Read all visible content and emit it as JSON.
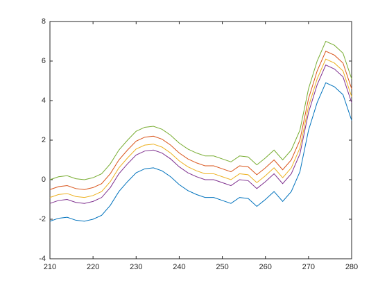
{
  "chart_data": {
    "type": "line",
    "x": [
      210,
      212,
      214,
      216,
      218,
      220,
      222,
      224,
      226,
      228,
      230,
      232,
      234,
      236,
      238,
      240,
      242,
      244,
      246,
      248,
      250,
      252,
      254,
      256,
      258,
      260,
      262,
      264,
      266,
      268,
      270,
      272,
      274,
      276,
      278,
      280
    ],
    "series": [
      {
        "color": "#0072bd",
        "values": [
          -2.1,
          -1.95,
          -1.9,
          -2.05,
          -2.1,
          -2.0,
          -1.8,
          -1.3,
          -0.6,
          -0.1,
          0.35,
          0.55,
          0.6,
          0.45,
          0.15,
          -0.25,
          -0.55,
          -0.75,
          -0.9,
          -0.9,
          -1.05,
          -1.2,
          -0.9,
          -0.95,
          -1.35,
          -1.0,
          -0.6,
          -1.1,
          -0.6,
          0.4,
          2.5,
          3.9,
          4.9,
          4.7,
          4.3,
          3.0
        ]
      },
      {
        "color": "#d95319",
        "values": [
          -0.5,
          -0.35,
          -0.3,
          -0.45,
          -0.5,
          -0.4,
          -0.2,
          0.3,
          1.0,
          1.5,
          1.95,
          2.15,
          2.2,
          2.05,
          1.75,
          1.35,
          1.05,
          0.85,
          0.7,
          0.7,
          0.55,
          0.4,
          0.7,
          0.65,
          0.25,
          0.6,
          1.0,
          0.5,
          1.0,
          2.0,
          4.1,
          5.5,
          6.5,
          6.3,
          5.9,
          4.6
        ]
      },
      {
        "color": "#edb120",
        "values": [
          -0.9,
          -0.75,
          -0.7,
          -0.85,
          -0.9,
          -0.8,
          -0.6,
          -0.1,
          0.6,
          1.1,
          1.55,
          1.75,
          1.8,
          1.65,
          1.35,
          0.95,
          0.65,
          0.45,
          0.3,
          0.3,
          0.15,
          0,
          0.3,
          0.25,
          -0.15,
          0.2,
          0.6,
          0.1,
          0.6,
          1.6,
          3.7,
          5.1,
          6.1,
          5.9,
          5.5,
          4.2
        ]
      },
      {
        "color": "#7e2f8e",
        "values": [
          -1.2,
          -1.05,
          -1.0,
          -1.15,
          -1.2,
          -1.1,
          -0.9,
          -0.4,
          0.3,
          0.8,
          1.25,
          1.45,
          1.5,
          1.35,
          1.05,
          0.65,
          0.35,
          0.15,
          0,
          0,
          -0.15,
          -0.3,
          0,
          -0.05,
          -0.45,
          -0.1,
          0.3,
          -0.2,
          0.3,
          1.3,
          3.4,
          4.8,
          5.8,
          5.6,
          5.2,
          3.9
        ]
      },
      {
        "color": "#77ac30",
        "values": [
          0,
          0.15,
          0.2,
          0.05,
          0,
          0.1,
          0.3,
          0.8,
          1.5,
          2.0,
          2.45,
          2.65,
          2.7,
          2.55,
          2.25,
          1.85,
          1.55,
          1.35,
          1.2,
          1.2,
          1.05,
          0.9,
          1.2,
          1.15,
          0.75,
          1.1,
          1.5,
          1.0,
          1.5,
          2.5,
          4.6,
          6.0,
          7.0,
          6.8,
          6.4,
          5.1
        ]
      }
    ],
    "xlim": [
      210,
      280
    ],
    "xticks": [
      210,
      220,
      230,
      240,
      250,
      260,
      270,
      280
    ],
    "ylim": [
      -4,
      8
    ],
    "yticks": [
      -4,
      -2,
      0,
      2,
      4,
      6,
      8
    ],
    "grid": false
  }
}
